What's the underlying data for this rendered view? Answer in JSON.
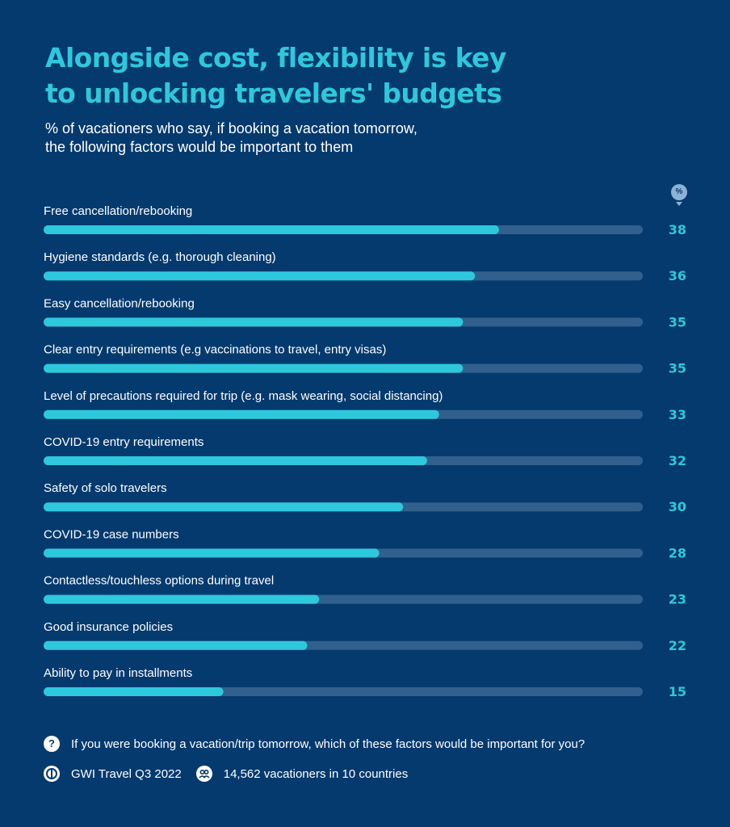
{
  "title_lines": [
    "Alongside cost, flexibility is key",
    "to unlocking travelers' budgets"
  ],
  "subtitle_lines": [
    "% of vacationers who say, if booking a vacation tomorrow,",
    "the following factors would be important to them"
  ],
  "unit_badge": "%",
  "colors": {
    "background": "#053a6e",
    "bar_fill": "#2ec8dc",
    "bar_track": "#32608e",
    "title": "#2ec8dc",
    "value": "#2ec8dc",
    "text": "#ffffff"
  },
  "chart_data": {
    "type": "bar",
    "orientation": "horizontal",
    "title": "Alongside cost, flexibility is key to unlocking travelers' budgets",
    "subtitle": "% of vacationers who say, if booking a vacation tomorrow, the following factors would be important to them",
    "categories": [
      "Free cancellation/rebooking",
      "Hygiene standards (e.g. thorough cleaning)",
      "Easy cancellation/rebooking",
      "Clear entry requirements (e.g vaccinations to travel, entry visas)",
      "Level of precautions required for trip (e.g. mask wearing, social distancing)",
      "COVID-19 entry requirements",
      "Safety of solo travelers",
      "COVID-19 case numbers",
      "Contactless/touchless options during travel",
      "Good insurance policies",
      "Ability to pay in installments"
    ],
    "values": [
      38,
      36,
      35,
      35,
      33,
      32,
      30,
      28,
      23,
      22,
      15
    ],
    "xlim": [
      0,
      50
    ],
    "grid": false,
    "legend": "none"
  },
  "footer": {
    "question_icon": "question-icon",
    "question": "If you were booking a vacation/trip tomorrow, which of these factors would be important for you?",
    "source_icon": "gwi-logo-icon",
    "source": "GWI Travel Q3 2022",
    "sample_icon": "people-icon",
    "sample": "14,562 vacationers in 10 countries"
  }
}
